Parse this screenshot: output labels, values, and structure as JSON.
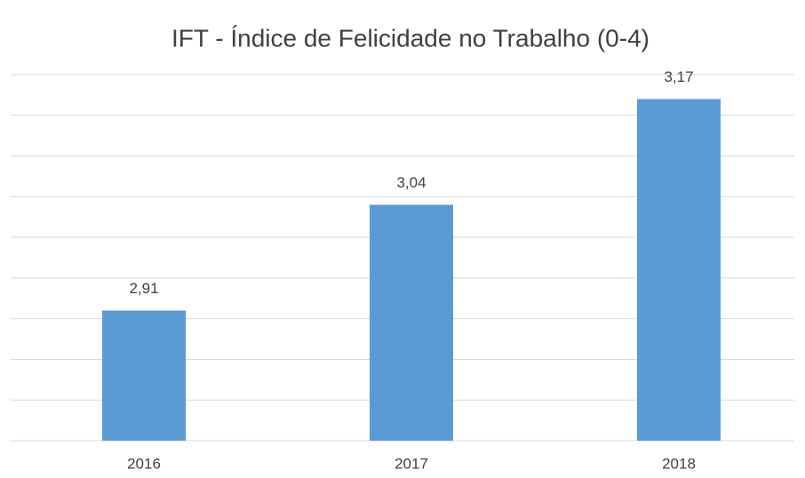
{
  "chart_data": {
    "type": "bar",
    "title": "IFT - Índice de Felicidade no Trabalho (0-4)",
    "categories": [
      "2016",
      "2017",
      "2018"
    ],
    "values": [
      2.91,
      3.04,
      3.17
    ],
    "value_labels": [
      "2,91",
      "3,04",
      "3,17"
    ],
    "color": "#5b9bd5",
    "ylim": [
      2.75,
      3.2
    ],
    "yticks": [
      2.75,
      2.8,
      2.85,
      2.9,
      2.95,
      3,
      3.05,
      3.1,
      3.15,
      3.2
    ],
    "grid": true
  }
}
